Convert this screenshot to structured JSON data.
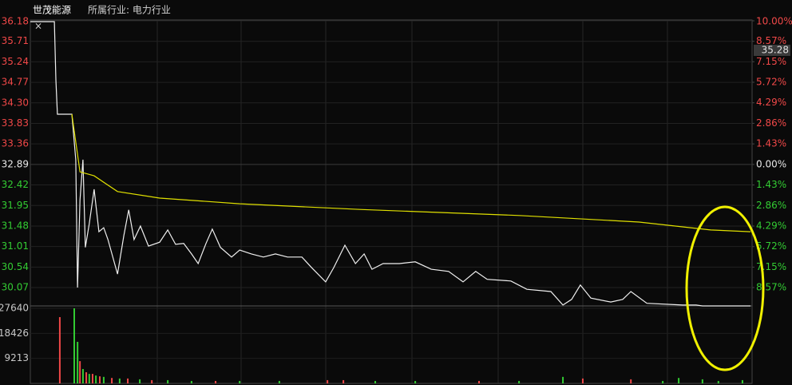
{
  "chart_data": [
    {
      "type": "line",
      "title": "世茂能源",
      "subtitle": "所属行业: 电力行业",
      "cursor_label": "35.28",
      "xlim": [
        0,
        240
      ],
      "ylim": [
        29.65,
        36.18
      ],
      "y2lim": [
        -9.85,
        10.0
      ],
      "yticks": [
        36.18,
        35.71,
        35.24,
        34.77,
        {
          "value": 34.3,
          "label": "34.30"
        },
        33.83,
        33.36,
        32.89,
        32.42,
        31.95,
        31.48,
        31.01,
        30.54,
        30.07
      ],
      "y2ticks": [
        {
          "value": 10.0,
          "label": "10.00%"
        },
        {
          "value": 8.57,
          "label": "8.57%"
        },
        {
          "value": 7.15,
          "label": "7.15%"
        },
        {
          "value": 5.72,
          "label": "5.72%"
        },
        {
          "value": 4.29,
          "label": "4.29%"
        },
        {
          "value": 2.86,
          "label": "2.86%"
        },
        {
          "value": 1.43,
          "label": "1.43%"
        },
        {
          "value": 0,
          "label": "0.00%"
        },
        {
          "value": -1.43,
          "label": "1.43%"
        },
        {
          "value": -2.86,
          "label": "2.86%"
        },
        {
          "value": -4.29,
          "label": "4.29%"
        },
        {
          "value": -5.72,
          "label": "5.72%"
        },
        {
          "value": -7.15,
          "label": "7.15%"
        },
        {
          "value": -8.57,
          "label": "8.57%"
        }
      ],
      "up_color": "#f04848",
      "down_color": "#33cc33",
      "flat_color": "#e8e8e8",
      "series": [
        {
          "color": "#f0f0f0",
          "x": [
            0,
            8,
            8.5,
            9,
            13.8,
            15.1,
            15.7,
            16.5,
            17.5,
            18.3,
            19.6,
            21.2,
            22.8,
            24.4,
            25.8,
            29,
            31.1,
            32.7,
            34.5,
            36.6,
            39.3,
            43,
            45.7,
            48.3,
            51,
            53.6,
            55.8,
            58.4,
            60.5,
            63.2,
            66.9,
            69.6,
            73.5,
            77.5,
            81.5,
            85.5,
            90.3,
            93.5,
            98.2,
            100.9,
            104.6,
            108.1,
            111,
            113.6,
            117.3,
            122.7,
            128,
            133.3,
            139.1,
            143.9,
            148.1,
            151.9,
            159.8,
            165.1,
            173.1,
            177.1,
            180,
            182.9,
            186.4,
            193,
            197,
            199.7,
            205,
            216.9,
            221.4,
            223.5,
            239.5
          ],
          "values": [
            36.16,
            36.16,
            34.83,
            34.04,
            34.04,
            33.0,
            30.07,
            32.08,
            33.0,
            30.99,
            31.53,
            32.32,
            31.35,
            31.44,
            31.17,
            30.38,
            31.26,
            31.85,
            31.17,
            31.48,
            31.02,
            31.11,
            31.39,
            31.06,
            31.08,
            30.84,
            30.62,
            31.08,
            31.41,
            30.99,
            30.77,
            30.93,
            30.84,
            30.77,
            30.84,
            30.77,
            30.77,
            30.53,
            30.2,
            30.53,
            31.04,
            30.62,
            30.84,
            30.49,
            30.62,
            30.62,
            30.66,
            30.49,
            30.44,
            30.2,
            30.44,
            30.26,
            30.22,
            30.03,
            29.98,
            29.67,
            29.8,
            30.13,
            29.83,
            29.74,
            29.8,
            29.98,
            29.71,
            29.67,
            29.67,
            29.65,
            29.65
          ]
        },
        {
          "color": "#e0e000",
          "x": [
            13.8,
            16.5,
            21.2,
            29,
            43,
            69.6,
            109.5,
            162.6,
            202.4,
            226.3,
            239.5
          ],
          "values": [
            34.04,
            32.72,
            32.63,
            32.27,
            32.12,
            31.99,
            31.86,
            31.72,
            31.57,
            31.39,
            31.35
          ]
        }
      ]
    },
    {
      "type": "bar",
      "xlim": [
        0,
        240
      ],
      "ylim": [
        0,
        27640
      ],
      "yticks": [
        27640,
        18426,
        9213
      ],
      "x": [
        9.8,
        14.6,
        15.7,
        16.5,
        17.5,
        18.6,
        19.6,
        20.7,
        21.8,
        23.1,
        24.4,
        27.1,
        29.7,
        32.4,
        36.4,
        40.4,
        45.7,
        53.6,
        61.6,
        69.6,
        82.8,
        98.8,
        104.1,
        114.7,
        128,
        149.2,
        162.5,
        177.1,
        183.7,
        199.7,
        210.3,
        215.6,
        223.5,
        228.8,
        236.8
      ],
      "values": [
        24400,
        27640,
        15300,
        8200,
        5300,
        4100,
        3500,
        3500,
        2900,
        2600,
        2400,
        2000,
        1800,
        1800,
        1500,
        1200,
        1200,
        900,
        900,
        900,
        900,
        1200,
        1200,
        900,
        900,
        900,
        900,
        2400,
        1800,
        1500,
        900,
        2000,
        1500,
        900,
        1200
      ],
      "colors": [
        "#f04848",
        "#33cc33",
        "#33cc33",
        "#f04848",
        "#33cc33",
        "#f04848",
        "#33cc33",
        "#f04848",
        "#33cc33",
        "#f04848",
        "#33cc33",
        "#f04848",
        "#33cc33",
        "#f04848",
        "#33cc33",
        "#f04848",
        "#33cc33",
        "#33cc33",
        "#f04848",
        "#33cc33",
        "#33cc33",
        "#f04848",
        "#f04848",
        "#33cc33",
        "#33cc33",
        "#f04848",
        "#33cc33",
        "#33cc33",
        "#f04848",
        "#f04848",
        "#33cc33",
        "#33cc33",
        "#33cc33",
        "#33cc33",
        "#33cc33"
      ],
      "label_color": "#c8c8c8"
    }
  ]
}
